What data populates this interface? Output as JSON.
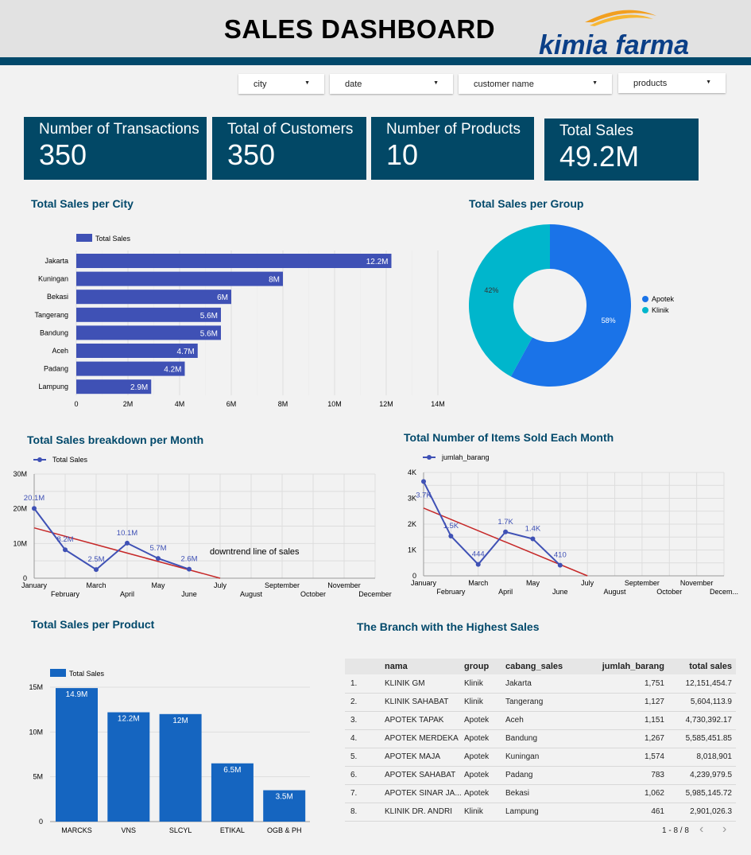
{
  "header": {
    "title": "SALES DASHBOARD",
    "logo_text": "kimia farma"
  },
  "filters": [
    {
      "label": "city"
    },
    {
      "label": "date"
    },
    {
      "label": "customer name"
    },
    {
      "label": "products"
    }
  ],
  "kpis": [
    {
      "label": "Number of Transactions",
      "value": "350"
    },
    {
      "label": "Total of Customers",
      "value": "350"
    },
    {
      "label": "Number of Products",
      "value": "10"
    },
    {
      "label": "Total Sales",
      "value": "49.2M"
    }
  ],
  "colors": {
    "brand": "#02496b",
    "bar": "#3f51b5",
    "apotek": "#1a73e8",
    "klinik": "#00b6cc",
    "trend": "#c62828",
    "product_bar": "#1565c0"
  },
  "chart_data": [
    {
      "id": "city",
      "type": "bar",
      "orientation": "horizontal",
      "title": "Total Sales per City",
      "legend": "Total Sales",
      "categories": [
        "Jakarta",
        "Kuningan",
        "Bekasi",
        "Tangerang",
        "Bandung",
        "Aceh",
        "Padang",
        "Lampung"
      ],
      "values": [
        12.2,
        8,
        6,
        5.6,
        5.6,
        4.7,
        4.2,
        2.9
      ],
      "labels": [
        "12.2M",
        "8M",
        "6M",
        "5.6M",
        "5.6M",
        "4.7M",
        "4.2M",
        "2.9M"
      ],
      "xlim": [
        0,
        14
      ],
      "ticks": [
        "0",
        "2M",
        "4M",
        "6M",
        "8M",
        "10M",
        "12M",
        "14M"
      ],
      "grid": true,
      "legend_position": "top-left"
    },
    {
      "id": "group",
      "type": "pie",
      "donut": true,
      "title": "Total Sales per Group",
      "categories": [
        "Apotek",
        "Klinik"
      ],
      "values": [
        58,
        42
      ],
      "labels": [
        "58%",
        "42%"
      ],
      "legend_position": "right"
    },
    {
      "id": "month",
      "type": "line",
      "title": "Total Sales breakdown per Month",
      "legend": "Total Sales",
      "x": [
        "January",
        "February",
        "March",
        "April",
        "May",
        "June",
        "July",
        "August",
        "September",
        "October",
        "November",
        "December"
      ],
      "values": [
        20.1,
        8.2,
        2.5,
        10.1,
        5.7,
        2.6
      ],
      "labels": [
        "20.1M",
        "8.2M",
        "2.5M",
        "10.1M",
        "5.7M",
        "2.6M"
      ],
      "ylim": [
        0,
        30
      ],
      "yticks": [
        "0",
        "10M",
        "20M",
        "30M"
      ],
      "trendline": {
        "from": [
          "January",
          14.5
        ],
        "to": [
          "July",
          0
        ]
      },
      "annotation": "downtrend line of sales",
      "grid": true,
      "legend_position": "top-left"
    },
    {
      "id": "items",
      "type": "line",
      "title": "Total Number of Items Sold Each Month",
      "legend": "jumlah_barang",
      "x": [
        "January",
        "February",
        "March",
        "April",
        "May",
        "June",
        "July",
        "August",
        "September",
        "October",
        "November",
        "Decem..."
      ],
      "values": [
        3650,
        1540,
        444,
        1700,
        1430,
        410
      ],
      "labels": [
        "3.7K",
        "1.5K",
        "444",
        "1.7K",
        "1.4K",
        "410"
      ],
      "ylim": [
        0,
        4000
      ],
      "yticks": [
        "0",
        "1K",
        "2K",
        "3K",
        "4K"
      ],
      "trendline": {
        "from": [
          "January",
          2620
        ],
        "to": [
          "July",
          0
        ]
      },
      "grid": true,
      "legend_position": "top-left"
    },
    {
      "id": "product",
      "type": "bar",
      "title": "Total Sales per Product",
      "legend": "Total Sales",
      "categories": [
        "MARCKS",
        "VNS",
        "SLCYL",
        "ETIKAL",
        "OGB & PH"
      ],
      "values": [
        14.9,
        12.2,
        12,
        6.5,
        3.5
      ],
      "labels": [
        "14.9M",
        "12.2M",
        "12M",
        "6.5M",
        "3.5M"
      ],
      "ylim": [
        0,
        15
      ],
      "yticks": [
        "0",
        "5M",
        "10M",
        "15M"
      ],
      "legend_position": "top-left"
    }
  ],
  "table": {
    "title": "The Branch with the Highest Sales",
    "columns": [
      "",
      "nama",
      "group",
      "cabang_sales",
      "jumlah_barang",
      "total sales"
    ],
    "rows": [
      [
        "1.",
        "KLINIK GM",
        "Klinik",
        "Jakarta",
        "1,751",
        "12,151,454.7"
      ],
      [
        "2.",
        "KLINIK SAHABAT",
        "Klinik",
        "Tangerang",
        "1,127",
        "5,604,113.9"
      ],
      [
        "3.",
        "APOTEK TAPAK",
        "Apotek",
        "Aceh",
        "1,151",
        "4,730,392.17"
      ],
      [
        "4.",
        "APOTEK MERDEKA",
        "Apotek",
        "Bandung",
        "1,267",
        "5,585,451.85"
      ],
      [
        "5.",
        "APOTEK MAJA",
        "Apotek",
        "Kuningan",
        "1,574",
        "8,018,901"
      ],
      [
        "6.",
        "APOTEK SAHABAT",
        "Apotek",
        "Padang",
        "783",
        "4,239,979.5"
      ],
      [
        "7.",
        "APOTEK SINAR JA...",
        "Apotek",
        "Bekasi",
        "1,062",
        "5,985,145.72"
      ],
      [
        "8.",
        "KLINIK DR. ANDRI",
        "Klinik",
        "Lampung",
        "461",
        "2,901,026.3"
      ]
    ],
    "pagination": "1 - 8 / 8"
  }
}
